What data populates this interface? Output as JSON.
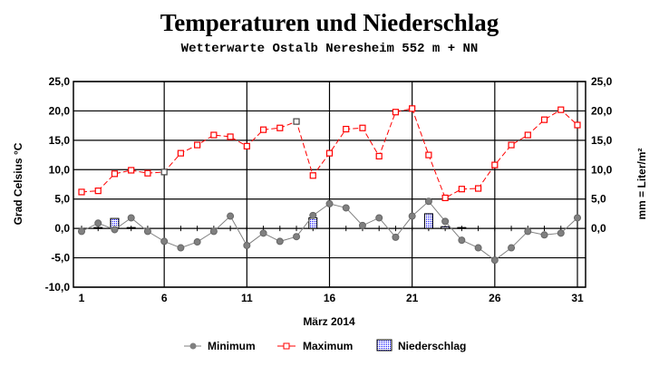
{
  "chart_data": {
    "type": "line",
    "title": "Temperaturen und  Niederschlag",
    "subtitle": "Wetterwarte Ostalb Neresheim 552 m + NN",
    "xlabel": "März 2014",
    "ylabel": "Grad Celsius °C",
    "y2label": "mm = Liter/m²",
    "xlim": [
      1,
      31
    ],
    "ylim": [
      -10,
      25
    ],
    "y2lim": [
      -10,
      25
    ],
    "x_ticks": [
      1,
      6,
      11,
      16,
      21,
      26,
      31
    ],
    "y_tick_labels": [
      "25,0",
      "20,0",
      "15,0",
      "10,0",
      "5,0",
      "0,0",
      "-5,0",
      "-10,0"
    ],
    "y_ticks": [
      25,
      20,
      15,
      10,
      5,
      0,
      -5,
      -10
    ],
    "y2_tick_labels": [
      "25,0",
      "20,0",
      "15,0",
      "10,0",
      "5,0",
      "0,0"
    ],
    "y2_ticks": [
      25,
      20,
      15,
      10,
      5,
      0
    ],
    "grid": true,
    "legend_position": "bottom",
    "x": [
      1,
      2,
      3,
      4,
      5,
      6,
      7,
      8,
      9,
      10,
      11,
      12,
      13,
      14,
      15,
      16,
      17,
      18,
      19,
      20,
      21,
      22,
      23,
      24,
      25,
      26,
      27,
      28,
      29,
      30,
      31
    ],
    "series": [
      {
        "name": "Minimum",
        "type": "line",
        "color": "#808080",
        "values": [
          -0.5,
          0.9,
          -0.2,
          1.8,
          -0.5,
          -2.2,
          -3.3,
          -2.3,
          -0.5,
          2.1,
          -2.9,
          -0.8,
          -2.2,
          -1.4,
          2.2,
          4.2,
          3.5,
          0.5,
          1.8,
          -1.5,
          2.1,
          4.6,
          1.2,
          -2.0,
          -3.3,
          -5.4,
          -3.3,
          -0.5,
          -1.1,
          -0.8,
          1.8
        ]
      },
      {
        "name": "Maximum",
        "type": "line",
        "color": "#ff0000",
        "values": [
          6.2,
          6.4,
          9.3,
          9.9,
          9.4,
          9.6,
          12.8,
          14.2,
          15.9,
          15.6,
          14.0,
          16.8,
          17.1,
          18.2,
          9.0,
          12.8,
          16.9,
          17.1,
          12.3,
          19.8,
          20.4,
          12.5,
          5.2,
          6.7,
          6.8,
          10.8,
          14.2,
          15.9,
          18.5,
          20.2,
          17.6
        ]
      },
      {
        "name": "Niederschlag",
        "type": "bar",
        "axis": "right",
        "color": "#0000ff",
        "values": [
          0,
          0.1,
          1.7,
          0.1,
          0,
          0,
          0,
          0,
          0,
          0,
          0,
          0,
          0,
          0,
          1.8,
          0,
          0,
          0,
          0,
          0,
          0,
          2.5,
          0.3,
          0.1,
          0,
          0,
          0,
          0,
          0,
          0,
          0
        ]
      }
    ]
  }
}
